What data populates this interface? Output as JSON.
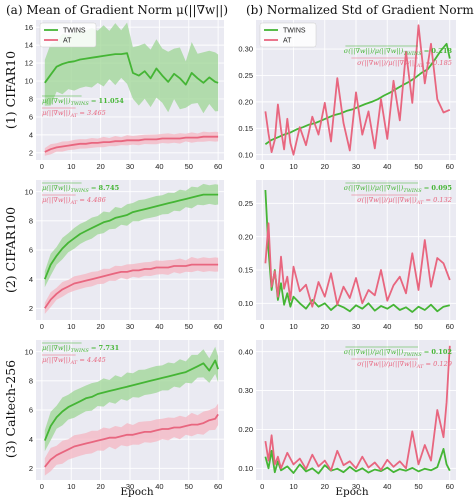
{
  "colors": {
    "twins": "#45b535",
    "twins_band": "#9ed694",
    "at": "#e8667f",
    "at_band": "#f4b6c2",
    "panel_bg": "#eaeaf2",
    "grid": "#ffffff"
  },
  "column_titles": [
    "(a) Mean of Gradient Norm μ(||∇w||)",
    "(b) Normalized Std of Gradient Norm σ(||∇w||)/μ(||∇w||)"
  ],
  "row_labels": [
    "(1) CIFAR10",
    "(2) CIFAR100",
    "(3) Caltech-256"
  ],
  "x_axis_label": "Epoch",
  "chart_data": [
    {
      "id": "a1",
      "type": "line",
      "row": 0,
      "col": 0,
      "xlim": [
        -2,
        62
      ],
      "ylim": [
        1.2,
        16.8
      ],
      "xticks": [
        0,
        10,
        20,
        30,
        40,
        50,
        60
      ],
      "yticks": [
        2,
        4,
        6,
        8,
        10,
        12,
        14,
        16
      ],
      "grid": true,
      "legend": "top-left",
      "legend_entries": [
        "TWINS",
        "AT"
      ],
      "annotations": [
        {
          "expr": "μ(||∇w||)",
          "sub": "TWINS",
          "value": "11.054",
          "color": "twins"
        },
        {
          "expr": "μ(||∇w||)",
          "sub": "AT",
          "value": "3.465",
          "color": "at"
        }
      ],
      "series": [
        {
          "name": "TWINS",
          "color": "twins",
          "band_half_width": 3.0,
          "x": [
            1,
            3,
            5,
            7,
            9,
            11,
            13,
            15,
            17,
            19,
            21,
            23,
            25,
            27,
            29,
            31,
            33,
            35,
            37,
            39,
            41,
            43,
            45,
            47,
            49,
            51,
            53,
            55,
            57,
            59,
            60
          ],
          "y": [
            9.8,
            10.7,
            11.6,
            11.9,
            12.1,
            12.2,
            12.4,
            12.5,
            12.6,
            12.7,
            12.8,
            12.9,
            13.0,
            13.0,
            13.1,
            10.9,
            10.6,
            11.1,
            10.3,
            11.4,
            10.6,
            9.9,
            10.8,
            10.3,
            9.6,
            10.9,
            10.3,
            9.8,
            10.4,
            9.9,
            9.8
          ]
        },
        {
          "name": "AT",
          "color": "at",
          "band_half_width": 0.5,
          "x": [
            1,
            3,
            5,
            7,
            9,
            11,
            13,
            15,
            17,
            19,
            21,
            23,
            25,
            27,
            29,
            31,
            33,
            35,
            37,
            39,
            41,
            43,
            45,
            47,
            49,
            51,
            53,
            55,
            57,
            59,
            60
          ],
          "y": [
            2.1,
            2.4,
            2.6,
            2.7,
            2.8,
            2.9,
            3.0,
            3.0,
            3.1,
            3.1,
            3.2,
            3.2,
            3.3,
            3.3,
            3.4,
            3.4,
            3.4,
            3.5,
            3.5,
            3.5,
            3.6,
            3.6,
            3.6,
            3.6,
            3.7,
            3.7,
            3.7,
            3.8,
            3.8,
            3.8,
            3.8
          ]
        }
      ]
    },
    {
      "id": "b1",
      "type": "line",
      "row": 0,
      "col": 1,
      "xlim": [
        -2,
        62
      ],
      "ylim": [
        0.09,
        0.355
      ],
      "xticks": [
        0,
        10,
        20,
        30,
        40,
        50,
        60
      ],
      "yticks": [
        0.1,
        0.15,
        0.2,
        0.25,
        0.3
      ],
      "grid": true,
      "legend": "top-left",
      "legend_entries": [
        "TWINS",
        "AT"
      ],
      "annotations": [
        {
          "expr": "σ(||∇w||)/μ(||∇w||)",
          "sub": "TWINS",
          "value": "0.218",
          "color": "twins"
        },
        {
          "expr": "σ(||∇w||)/μ(||∇w||)",
          "sub": "AT",
          "value": "0.185",
          "color": "at"
        }
      ],
      "series": [
        {
          "name": "TWINS",
          "color": "twins",
          "x": [
            1,
            3,
            5,
            7,
            9,
            11,
            13,
            15,
            17,
            19,
            21,
            23,
            25,
            27,
            29,
            31,
            33,
            35,
            37,
            39,
            41,
            43,
            45,
            47,
            49,
            51,
            53,
            55,
            57,
            59,
            60
          ],
          "y": [
            0.12,
            0.128,
            0.133,
            0.138,
            0.142,
            0.148,
            0.152,
            0.157,
            0.16,
            0.165,
            0.17,
            0.175,
            0.178,
            0.183,
            0.186,
            0.191,
            0.196,
            0.2,
            0.205,
            0.212,
            0.218,
            0.225,
            0.232,
            0.238,
            0.246,
            0.255,
            0.262,
            0.278,
            0.296,
            0.31,
            0.282
          ]
        },
        {
          "name": "AT",
          "color": "at",
          "x": [
            1,
            2,
            3,
            4,
            5,
            6,
            7,
            8,
            9,
            10,
            12,
            14,
            16,
            18,
            20,
            22,
            24,
            26,
            28,
            30,
            32,
            34,
            36,
            38,
            40,
            42,
            44,
            46,
            48,
            50,
            52,
            54,
            56,
            58,
            60
          ],
          "y": [
            0.182,
            0.14,
            0.105,
            0.128,
            0.195,
            0.148,
            0.11,
            0.168,
            0.122,
            0.1,
            0.152,
            0.118,
            0.172,
            0.138,
            0.198,
            0.125,
            0.245,
            0.16,
            0.108,
            0.218,
            0.138,
            0.182,
            0.112,
            0.205,
            0.13,
            0.24,
            0.165,
            0.295,
            0.198,
            0.345,
            0.235,
            0.31,
            0.205,
            0.18,
            0.185
          ]
        }
      ]
    },
    {
      "id": "a2",
      "type": "line",
      "row": 1,
      "col": 0,
      "xlim": [
        -2,
        62
      ],
      "ylim": [
        1.2,
        10.8
      ],
      "xticks": [
        0,
        10,
        20,
        30,
        40,
        50,
        60
      ],
      "yticks": [
        2,
        4,
        6,
        8,
        10
      ],
      "grid": true,
      "annotations": [
        {
          "expr": "μ(||∇w||)",
          "sub": "TWINS",
          "value": "8.745",
          "color": "twins"
        },
        {
          "expr": "μ(||∇w||)",
          "sub": "AT",
          "value": "4.486",
          "color": "at"
        }
      ],
      "series": [
        {
          "name": "TWINS",
          "color": "twins",
          "band_half_width": 0.65,
          "x": [
            1,
            3,
            5,
            7,
            9,
            11,
            13,
            15,
            17,
            19,
            21,
            23,
            25,
            27,
            29,
            31,
            33,
            35,
            37,
            39,
            41,
            43,
            45,
            47,
            49,
            51,
            53,
            55,
            57,
            59,
            60
          ],
          "y": [
            4.0,
            5.0,
            5.6,
            6.1,
            6.5,
            6.8,
            7.1,
            7.3,
            7.5,
            7.7,
            7.9,
            8.0,
            8.2,
            8.3,
            8.4,
            8.6,
            8.7,
            8.8,
            8.9,
            9.0,
            9.1,
            9.2,
            9.3,
            9.4,
            9.5,
            9.6,
            9.7,
            9.8,
            9.8,
            9.8,
            9.8
          ]
        },
        {
          "name": "AT",
          "color": "at",
          "band_half_width": 0.45,
          "x": [
            1,
            3,
            5,
            7,
            9,
            11,
            13,
            15,
            17,
            19,
            21,
            23,
            25,
            27,
            29,
            31,
            33,
            35,
            37,
            39,
            41,
            43,
            45,
            47,
            49,
            51,
            53,
            55,
            57,
            59,
            60
          ],
          "y": [
            2.0,
            2.6,
            3.0,
            3.3,
            3.5,
            3.7,
            3.8,
            3.9,
            4.0,
            4.1,
            4.2,
            4.3,
            4.4,
            4.5,
            4.5,
            4.6,
            4.6,
            4.7,
            4.7,
            4.8,
            4.8,
            4.8,
            4.9,
            4.9,
            4.9,
            5.0,
            5.0,
            5.0,
            5.0,
            5.0,
            5.0
          ]
        }
      ]
    },
    {
      "id": "b2",
      "type": "line",
      "row": 1,
      "col": 1,
      "xlim": [
        -2,
        62
      ],
      "ylim": [
        0.075,
        0.285
      ],
      "xticks": [
        0,
        10,
        20,
        30,
        40,
        50,
        60
      ],
      "yticks": [
        0.1,
        0.15,
        0.2,
        0.25
      ],
      "grid": true,
      "annotations": [
        {
          "expr": "σ(||∇w||)/μ(||∇w||)",
          "sub": "TWINS",
          "value": "0.095",
          "color": "twins"
        },
        {
          "expr": "σ(||∇w||)/μ(||∇w||)",
          "sub": "AT",
          "value": "0.132",
          "color": "at"
        }
      ],
      "series": [
        {
          "name": "TWINS",
          "color": "twins",
          "x": [
            1,
            2,
            3,
            4,
            5,
            6,
            7,
            8,
            9,
            10,
            12,
            14,
            16,
            18,
            20,
            22,
            24,
            26,
            28,
            30,
            32,
            34,
            36,
            38,
            40,
            42,
            44,
            46,
            48,
            50,
            52,
            54,
            56,
            58,
            60
          ],
          "y": [
            0.27,
            0.18,
            0.12,
            0.15,
            0.105,
            0.13,
            0.098,
            0.115,
            0.095,
            0.11,
            0.1,
            0.092,
            0.105,
            0.095,
            0.1,
            0.09,
            0.098,
            0.094,
            0.088,
            0.097,
            0.092,
            0.1,
            0.089,
            0.096,
            0.092,
            0.098,
            0.09,
            0.094,
            0.087,
            0.095,
            0.09,
            0.098,
            0.088,
            0.095,
            0.097
          ]
        },
        {
          "name": "AT",
          "color": "at",
          "x": [
            1,
            2,
            3,
            4,
            5,
            6,
            7,
            8,
            9,
            10,
            12,
            14,
            16,
            18,
            20,
            22,
            24,
            26,
            28,
            30,
            32,
            34,
            36,
            38,
            40,
            42,
            44,
            46,
            48,
            50,
            52,
            54,
            56,
            58,
            60
          ],
          "y": [
            0.16,
            0.22,
            0.125,
            0.148,
            0.11,
            0.17,
            0.122,
            0.14,
            0.105,
            0.155,
            0.118,
            0.128,
            0.095,
            0.132,
            0.11,
            0.145,
            0.098,
            0.125,
            0.108,
            0.138,
            0.1,
            0.12,
            0.112,
            0.15,
            0.104,
            0.127,
            0.14,
            0.115,
            0.175,
            0.12,
            0.195,
            0.125,
            0.168,
            0.16,
            0.135
          ]
        }
      ]
    },
    {
      "id": "a3",
      "type": "line",
      "row": 2,
      "col": 0,
      "xlim": [
        -2,
        62
      ],
      "ylim": [
        1.2,
        10.8
      ],
      "xticks": [
        0,
        10,
        20,
        30,
        40,
        50,
        60
      ],
      "yticks": [
        2,
        4,
        6,
        8,
        10
      ],
      "grid": true,
      "annotations": [
        {
          "expr": "μ(||∇w||)",
          "sub": "TWINS",
          "value": "7.731",
          "color": "twins"
        },
        {
          "expr": "μ(||∇w||)",
          "sub": "AT",
          "value": "4.445",
          "color": "at"
        }
      ],
      "series": [
        {
          "name": "TWINS",
          "color": "twins",
          "band_half_width": 0.85,
          "x": [
            1,
            3,
            5,
            7,
            9,
            11,
            13,
            15,
            17,
            19,
            21,
            23,
            25,
            27,
            29,
            31,
            33,
            35,
            37,
            39,
            41,
            43,
            45,
            47,
            49,
            51,
            53,
            55,
            57,
            59,
            60
          ],
          "y": [
            3.9,
            4.9,
            5.5,
            5.9,
            6.2,
            6.4,
            6.6,
            6.8,
            6.9,
            7.1,
            7.2,
            7.3,
            7.4,
            7.5,
            7.6,
            7.7,
            7.8,
            7.9,
            8.0,
            8.1,
            8.2,
            8.3,
            8.4,
            8.5,
            8.6,
            8.8,
            9.0,
            9.2,
            8.7,
            9.4,
            8.8
          ]
        },
        {
          "name": "AT",
          "color": "at",
          "band_half_width": 0.7,
          "x": [
            1,
            3,
            5,
            7,
            9,
            11,
            13,
            15,
            17,
            19,
            21,
            23,
            25,
            27,
            29,
            31,
            33,
            35,
            37,
            39,
            41,
            43,
            45,
            47,
            49,
            51,
            53,
            55,
            57,
            59,
            60
          ],
          "y": [
            2.1,
            2.6,
            2.9,
            3.1,
            3.3,
            3.5,
            3.6,
            3.7,
            3.8,
            3.9,
            4.0,
            4.1,
            4.1,
            4.2,
            4.3,
            4.3,
            4.4,
            4.5,
            4.5,
            4.6,
            4.7,
            4.7,
            4.8,
            4.8,
            4.9,
            5.0,
            5.0,
            5.1,
            5.3,
            5.4,
            5.7
          ]
        }
      ]
    },
    {
      "id": "b3",
      "type": "line",
      "row": 2,
      "col": 1,
      "xlim": [
        -2,
        62
      ],
      "ylim": [
        0.07,
        0.43
      ],
      "xticks": [
        0,
        10,
        20,
        30,
        40,
        50,
        60
      ],
      "yticks": [
        0.1,
        0.2,
        0.3,
        0.4
      ],
      "grid": true,
      "annotations": [
        {
          "expr": "σ(||∇w||)/μ(||∇w||)",
          "sub": "TWINS",
          "value": "0.102",
          "color": "twins"
        },
        {
          "expr": "σ(||∇w||)/μ(||∇w||)",
          "sub": "AT",
          "value": "0.129",
          "color": "at"
        }
      ],
      "series": [
        {
          "name": "TWINS",
          "color": "twins",
          "x": [
            1,
            2,
            3,
            4,
            5,
            6,
            8,
            10,
            12,
            14,
            16,
            18,
            20,
            22,
            24,
            26,
            28,
            30,
            32,
            34,
            36,
            38,
            40,
            42,
            44,
            46,
            48,
            50,
            52,
            54,
            56,
            58,
            59,
            60
          ],
          "y": [
            0.13,
            0.1,
            0.145,
            0.09,
            0.118,
            0.095,
            0.105,
            0.088,
            0.11,
            0.092,
            0.1,
            0.087,
            0.108,
            0.094,
            0.099,
            0.09,
            0.104,
            0.092,
            0.1,
            0.089,
            0.097,
            0.093,
            0.102,
            0.09,
            0.098,
            0.094,
            0.101,
            0.092,
            0.099,
            0.095,
            0.103,
            0.15,
            0.11,
            0.094
          ]
        },
        {
          "name": "AT",
          "color": "at",
          "x": [
            1,
            2,
            3,
            4,
            5,
            6,
            8,
            10,
            12,
            14,
            16,
            18,
            20,
            22,
            24,
            26,
            28,
            30,
            32,
            34,
            36,
            38,
            40,
            42,
            44,
            46,
            48,
            50,
            52,
            54,
            56,
            58,
            59,
            60
          ],
          "y": [
            0.17,
            0.12,
            0.185,
            0.11,
            0.13,
            0.1,
            0.14,
            0.11,
            0.125,
            0.098,
            0.135,
            0.105,
            0.12,
            0.095,
            0.145,
            0.108,
            0.118,
            0.1,
            0.13,
            0.102,
            0.115,
            0.096,
            0.122,
            0.104,
            0.118,
            0.1,
            0.195,
            0.11,
            0.16,
            0.12,
            0.25,
            0.18,
            0.27,
            0.415
          ]
        }
      ]
    }
  ]
}
